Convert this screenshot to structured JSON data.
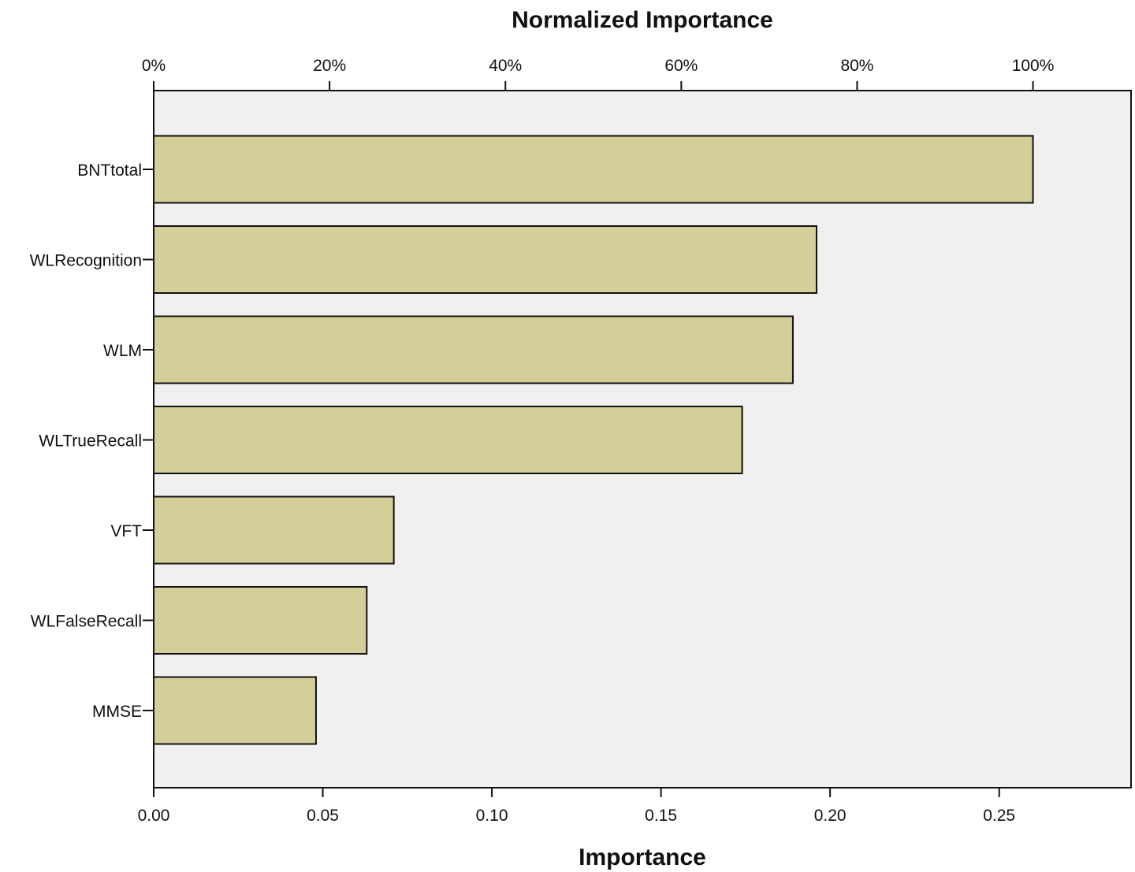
{
  "chart_data": {
    "type": "bar",
    "orientation": "horizontal",
    "categories": [
      "BNTtotal",
      "WLRecognition",
      "WLM",
      "WLTrueRecall",
      "VFT",
      "WLFalseRecall",
      "MMSE"
    ],
    "values": [
      0.26,
      0.196,
      0.189,
      0.174,
      0.071,
      0.063,
      0.048
    ],
    "xlabel": "Importance",
    "x2label": "Normalized Importance",
    "xlim": [
      0,
      0.289
    ],
    "xticks": [
      0,
      0.05,
      0.1,
      0.15,
      0.2,
      0.25
    ],
    "xtick_labels": [
      "0.00",
      "0.05",
      "0.10",
      "0.15",
      "0.20",
      "0.25"
    ],
    "x2ticks": [
      0,
      20,
      40,
      60,
      80,
      100
    ],
    "x2tick_labels": [
      "0%",
      "20%",
      "40%",
      "60%",
      "80%",
      "100%"
    ],
    "x2_max_percent": 100,
    "grid": false,
    "legend": "none",
    "colors": {
      "bar_fill": "#d4cf99",
      "bar_stroke": "#111111",
      "plot_background": "#f0f0f0"
    }
  }
}
